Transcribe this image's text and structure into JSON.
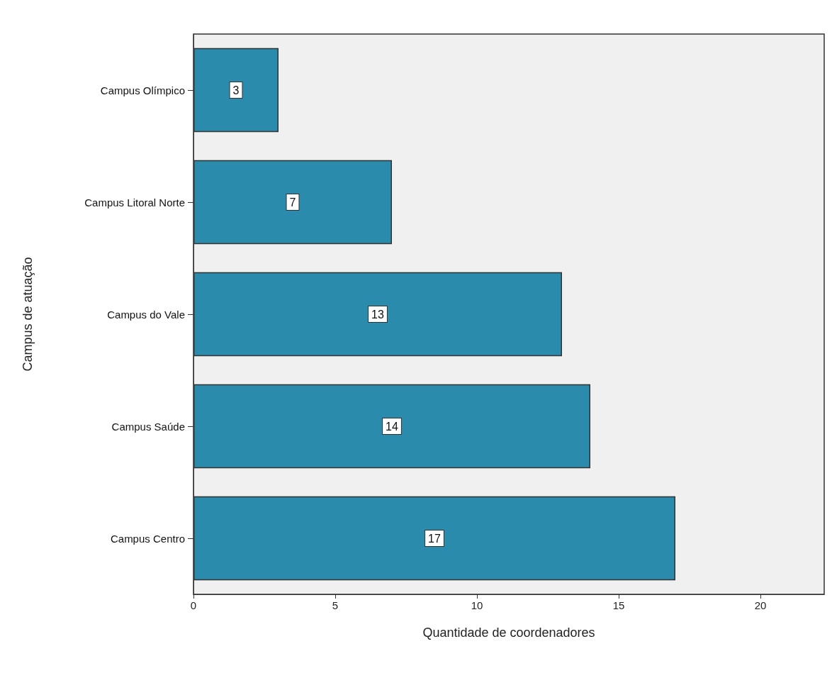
{
  "chart_data": {
    "type": "bar",
    "orientation": "horizontal",
    "xlabel": "Quantidade de coordenadores",
    "ylabel": "Campus de atuação",
    "categories": [
      "Campus Olímpico",
      "Campus Litoral Norte",
      "Campus do Vale",
      "Campus Saúde",
      "Campus Centro"
    ],
    "values": [
      3,
      7,
      13,
      14,
      17
    ],
    "color": "#2a8bad",
    "xlim": [
      0,
      22.25
    ],
    "xticks": [
      0,
      5,
      10,
      15,
      20
    ],
    "grid": false,
    "data_labels": true
  }
}
